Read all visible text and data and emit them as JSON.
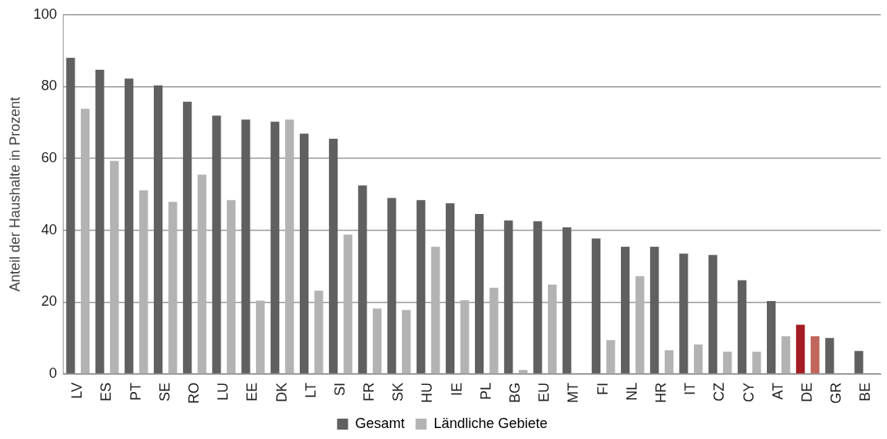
{
  "chart_data": {
    "type": "bar",
    "ylabel": "Anteil der Haushalte in Prozent",
    "categories": [
      "LV",
      "ES",
      "PT",
      "SE",
      "RO",
      "LU",
      "EE",
      "DK",
      "LT",
      "SI",
      "FR",
      "SK",
      "HU",
      "IE",
      "PL",
      "BG",
      "EU",
      "MT",
      "FI",
      "NL",
      "HR",
      "IT",
      "CZ",
      "CY",
      "AT",
      "DE",
      "GR",
      "BE"
    ],
    "series": [
      {
        "name": "Gesamt",
        "color": "#606060",
        "colors": [
          "#606060",
          "#606060",
          "#606060",
          "#606060",
          "#606060",
          "#606060",
          "#606060",
          "#606060",
          "#606060",
          "#606060",
          "#606060",
          "#606060",
          "#606060",
          "#606060",
          "#606060",
          "#606060",
          "#606060",
          "#606060",
          "#606060",
          "#606060",
          "#606060",
          "#606060",
          "#606060",
          "#606060",
          "#606060",
          "#a51c24",
          "#606060",
          "#606060"
        ],
        "values": [
          88,
          84.7,
          82.2,
          80.3,
          75.8,
          71.9,
          70.8,
          70.2,
          66.9,
          65.5,
          52.5,
          49,
          48.4,
          47.5,
          44.5,
          42.7,
          42.5,
          40.8,
          37.7,
          35.4,
          35.4,
          33.5,
          33.1,
          26.1,
          20.3,
          13.7,
          10,
          6.4
        ]
      },
      {
        "name": "Ländliche Gebiete",
        "color": "#b3b3b3",
        "colors": [
          "#b3b3b3",
          "#b3b3b3",
          "#b3b3b3",
          "#b3b3b3",
          "#b3b3b3",
          "#b3b3b3",
          "#b3b3b3",
          "#b3b3b3",
          "#b3b3b3",
          "#b3b3b3",
          "#b3b3b3",
          "#b3b3b3",
          "#b3b3b3",
          "#b3b3b3",
          "#b3b3b3",
          "#b3b3b3",
          "#b3b3b3",
          "#b3b3b3",
          "#b3b3b3",
          "#b3b3b3",
          "#b3b3b3",
          "#b3b3b3",
          "#b3b3b3",
          "#b3b3b3",
          "#b3b3b3",
          "#c0665a",
          "#b3b3b3",
          "#b3b3b3"
        ],
        "values": [
          73.8,
          59.3,
          51.1,
          47.9,
          55.5,
          48.4,
          20.4,
          70.8,
          23.2,
          38.8,
          18.2,
          17.8,
          35.4,
          20.5,
          24,
          1.1,
          24.9,
          null,
          9.4,
          27.2,
          6.6,
          8.2,
          6.2,
          6.2,
          10.5,
          10.5,
          null,
          0.2
        ]
      }
    ],
    "ylim": [
      0,
      100
    ],
    "yticks": [
      0,
      20,
      40,
      60,
      80,
      100
    ],
    "grid": "y",
    "legend": "bottom"
  }
}
